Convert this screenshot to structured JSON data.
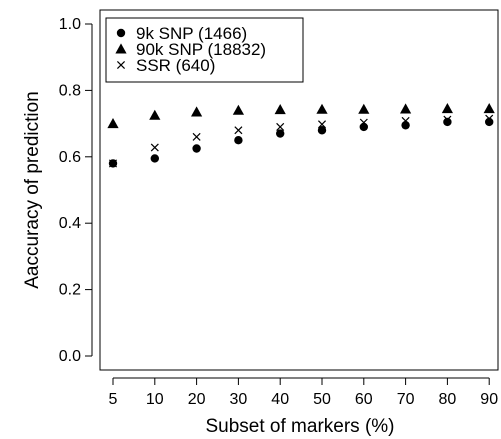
{
  "chart_data": {
    "type": "scatter",
    "xlabel": "Subset of markers (%)",
    "ylabel": "Aaccuracy of prediction",
    "categories": [
      "5",
      "10",
      "20",
      "30",
      "40",
      "50",
      "60",
      "70",
      "80",
      "90"
    ],
    "yticks": [
      "0.0",
      "0.2",
      "0.4",
      "0.6",
      "0.8",
      "1.0"
    ],
    "ylim": [
      0.0,
      1.0
    ],
    "grid": false,
    "legend_position": "top-left",
    "series": [
      {
        "name": "9k SNP (1466)",
        "marker": "circle",
        "values": [
          0.58,
          0.595,
          0.625,
          0.65,
          0.67,
          0.68,
          0.69,
          0.695,
          0.705,
          0.705
        ]
      },
      {
        "name": "90k SNP (18832)",
        "marker": "triangle",
        "values": [
          0.7,
          0.725,
          0.735,
          0.74,
          0.742,
          0.743,
          0.743,
          0.744,
          0.745,
          0.745
        ]
      },
      {
        "name": "SSR (640)",
        "marker": "cross",
        "values": [
          0.58,
          0.628,
          0.66,
          0.68,
          0.69,
          0.698,
          0.703,
          0.708,
          0.712,
          0.715
        ]
      }
    ],
    "colors": {
      "marker": "#000000",
      "axis": "#000000"
    }
  }
}
